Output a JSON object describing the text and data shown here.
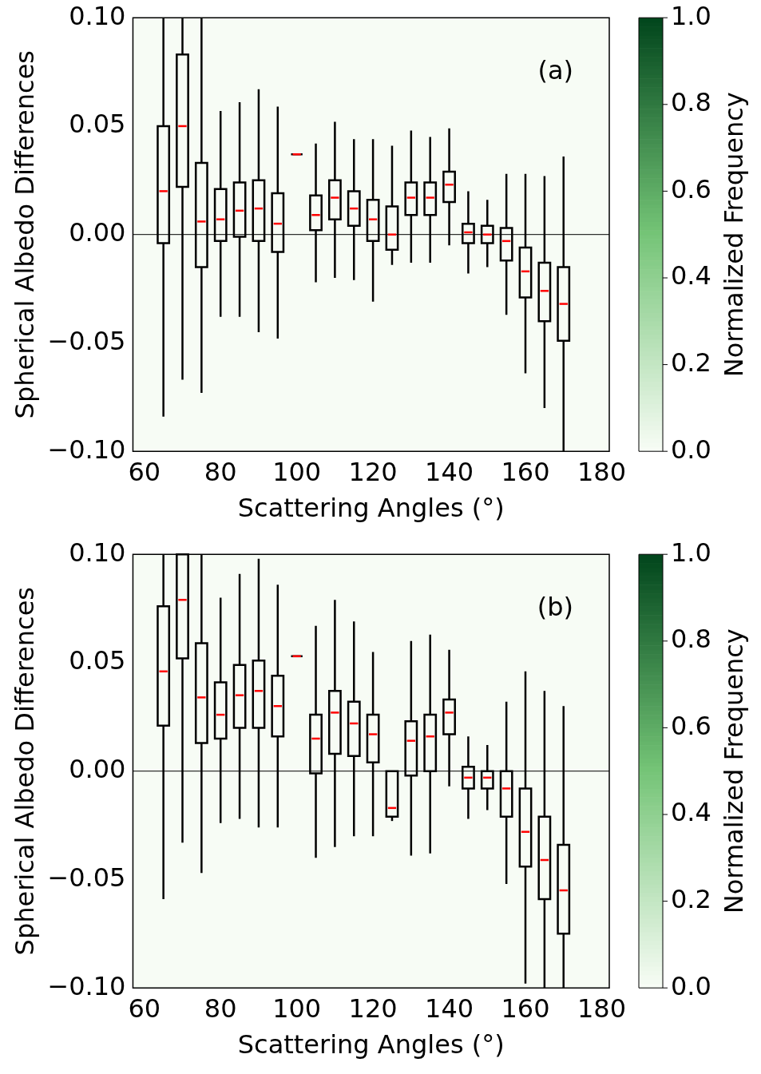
{
  "chart_data": [
    {
      "type": "box",
      "xlabel": "Scattering Angles (°)",
      "ylabel": "Spherical Albedo Differences",
      "clabel": "Normalized Frequency",
      "annotations": [
        "(a)"
      ],
      "x": [
        65,
        70,
        75,
        80,
        85,
        90,
        95,
        100,
        105,
        110,
        115,
        120,
        125,
        130,
        135,
        140,
        145,
        150,
        155,
        160,
        165,
        170
      ],
      "boxes": [
        {
          "low": -0.084,
          "q1": -0.004,
          "median": 0.02,
          "q3": 0.05,
          "high": 0.1
        },
        {
          "low": -0.067,
          "q1": 0.022,
          "median": 0.05,
          "q3": 0.083,
          "high": 0.1
        },
        {
          "low": -0.073,
          "q1": -0.015,
          "median": 0.006,
          "q3": 0.033,
          "high": 0.1
        },
        {
          "low": -0.038,
          "q1": -0.003,
          "median": 0.007,
          "q3": 0.021,
          "high": 0.057
        },
        {
          "low": -0.038,
          "q1": -0.001,
          "median": 0.011,
          "q3": 0.024,
          "high": 0.061
        },
        {
          "low": -0.045,
          "q1": -0.003,
          "median": 0.012,
          "q3": 0.025,
          "high": 0.067
        },
        {
          "low": -0.048,
          "q1": -0.008,
          "median": 0.005,
          "q3": 0.019,
          "high": 0.059
        },
        {
          "low": 0.037,
          "q1": 0.037,
          "median": 0.037,
          "q3": 0.037,
          "high": 0.037
        },
        {
          "low": -0.022,
          "q1": 0.002,
          "median": 0.009,
          "q3": 0.018,
          "high": 0.042
        },
        {
          "low": -0.02,
          "q1": 0.007,
          "median": 0.017,
          "q3": 0.025,
          "high": 0.052
        },
        {
          "low": -0.021,
          "q1": 0.004,
          "median": 0.012,
          "q3": 0.02,
          "high": 0.044
        },
        {
          "low": -0.031,
          "q1": -0.003,
          "median": 0.007,
          "q3": 0.016,
          "high": 0.044
        },
        {
          "low": -0.014,
          "q1": -0.007,
          "median": 0.0,
          "q3": 0.013,
          "high": 0.041
        },
        {
          "low": -0.013,
          "q1": 0.009,
          "median": 0.017,
          "q3": 0.024,
          "high": 0.048
        },
        {
          "low": -0.013,
          "q1": 0.009,
          "median": 0.017,
          "q3": 0.024,
          "high": 0.045
        },
        {
          "low": -0.005,
          "q1": 0.015,
          "median": 0.023,
          "q3": 0.029,
          "high": 0.049
        },
        {
          "low": -0.018,
          "q1": -0.004,
          "median": 0.001,
          "q3": 0.005,
          "high": 0.02
        },
        {
          "low": -0.015,
          "q1": -0.004,
          "median": 0.0,
          "q3": 0.004,
          "high": 0.016
        },
        {
          "low": -0.037,
          "q1": -0.012,
          "median": -0.003,
          "q3": 0.003,
          "high": 0.028
        },
        {
          "low": -0.064,
          "q1": -0.029,
          "median": -0.017,
          "q3": -0.006,
          "high": 0.028
        },
        {
          "low": -0.08,
          "q1": -0.04,
          "median": -0.026,
          "q3": -0.013,
          "high": 0.027
        },
        {
          "low": -0.1,
          "q1": -0.049,
          "median": -0.032,
          "q3": -0.015,
          "high": 0.036
        }
      ],
      "color": "#000000",
      "xlim": [
        57,
        182
      ],
      "xticks": [
        60,
        80,
        100,
        120,
        140,
        160,
        180
      ],
      "ylim": [
        -0.1,
        0.1
      ],
      "yticks": [
        {
          "value": -0.1,
          "label": "−0.10"
        },
        {
          "value": -0.05,
          "label": "−0.05"
        },
        {
          "value": 0,
          "label": "0.00"
        },
        {
          "value": 0.05,
          "label": "0.05"
        },
        {
          "value": 0.1,
          "label": "0.10"
        }
      ],
      "clim": [
        0,
        1
      ],
      "cticks": [
        {
          "value": 0,
          "label": "0.0"
        },
        {
          "value": 0.2,
          "label": "0.2"
        },
        {
          "value": 0.4,
          "label": "0.4"
        },
        {
          "value": 0.6,
          "label": "0.6"
        },
        {
          "value": 0.8,
          "label": "0.8"
        },
        {
          "value": 1,
          "label": "1.0"
        }
      ],
      "ref_lines": [
        {
          "axis": "y",
          "value": 0,
          "color": "#000000"
        }
      ]
    },
    {
      "type": "box",
      "xlabel": "Scattering Angles (°)",
      "ylabel": "Spherical Albedo Differences",
      "clabel": "Normalized Frequency",
      "annotations": [
        "(b)"
      ],
      "x": [
        65,
        70,
        75,
        80,
        85,
        90,
        95,
        100,
        105,
        110,
        115,
        120,
        125,
        130,
        135,
        140,
        145,
        150,
        155,
        160,
        165,
        170
      ],
      "boxes": [
        {
          "low": -0.059,
          "q1": 0.021,
          "median": 0.046,
          "q3": 0.076,
          "high": 0.1
        },
        {
          "low": -0.033,
          "q1": 0.052,
          "median": 0.079,
          "q3": 0.1,
          "high": 0.1
        },
        {
          "low": -0.047,
          "q1": 0.013,
          "median": 0.034,
          "q3": 0.059,
          "high": 0.1
        },
        {
          "low": -0.024,
          "q1": 0.015,
          "median": 0.026,
          "q3": 0.041,
          "high": 0.08
        },
        {
          "low": -0.022,
          "q1": 0.02,
          "median": 0.035,
          "q3": 0.049,
          "high": 0.091
        },
        {
          "low": -0.026,
          "q1": 0.02,
          "median": 0.037,
          "q3": 0.051,
          "high": 0.098
        },
        {
          "low": -0.026,
          "q1": 0.016,
          "median": 0.03,
          "q3": 0.044,
          "high": 0.086
        },
        {
          "low": 0.053,
          "q1": 0.053,
          "median": 0.053,
          "q3": 0.053,
          "high": 0.053
        },
        {
          "low": -0.04,
          "q1": -0.001,
          "median": 0.015,
          "q3": 0.026,
          "high": 0.067
        },
        {
          "low": -0.035,
          "q1": 0.008,
          "median": 0.027,
          "q3": 0.037,
          "high": 0.079
        },
        {
          "low": -0.03,
          "q1": 0.007,
          "median": 0.022,
          "q3": 0.032,
          "high": 0.069
        },
        {
          "low": -0.03,
          "q1": 0.004,
          "median": 0.017,
          "q3": 0.026,
          "high": 0.055
        },
        {
          "low": -0.023,
          "q1": -0.021,
          "median": -0.017,
          "q3": 0.0,
          "high": 0.0
        },
        {
          "low": -0.039,
          "q1": -0.002,
          "median": 0.014,
          "q3": 0.023,
          "high": 0.06
        },
        {
          "low": -0.038,
          "q1": 0.0,
          "median": 0.016,
          "q3": 0.026,
          "high": 0.063
        },
        {
          "low": -0.007,
          "q1": 0.017,
          "median": 0.027,
          "q3": 0.033,
          "high": 0.056
        },
        {
          "low": -0.022,
          "q1": -0.008,
          "median": -0.003,
          "q3": 0.002,
          "high": 0.016
        },
        {
          "low": -0.018,
          "q1": -0.008,
          "median": -0.003,
          "q3": 0.0,
          "high": 0.012
        },
        {
          "low": -0.052,
          "q1": -0.021,
          "median": -0.008,
          "q3": 0.0,
          "high": 0.032
        },
        {
          "low": -0.098,
          "q1": -0.044,
          "median": -0.028,
          "q3": -0.008,
          "high": 0.046
        },
        {
          "low": -0.1,
          "q1": -0.059,
          "median": -0.041,
          "q3": -0.021,
          "high": 0.037
        },
        {
          "low": -0.1,
          "q1": -0.075,
          "median": -0.055,
          "q3": -0.034,
          "high": 0.03
        }
      ],
      "color": "#000000",
      "xlim": [
        57,
        182
      ],
      "xticks": [
        60,
        80,
        100,
        120,
        140,
        160,
        180
      ],
      "ylim": [
        -0.1,
        0.1
      ],
      "yticks": [
        {
          "value": -0.1,
          "label": "−0.10"
        },
        {
          "value": -0.05,
          "label": "−0.05"
        },
        {
          "value": 0,
          "label": "0.00"
        },
        {
          "value": 0.05,
          "label": "0.05"
        },
        {
          "value": 0.1,
          "label": "0.10"
        }
      ],
      "clim": [
        0,
        1
      ],
      "cticks": [
        {
          "value": 0,
          "label": "0.0"
        },
        {
          "value": 0.2,
          "label": "0.2"
        },
        {
          "value": 0.4,
          "label": "0.4"
        },
        {
          "value": 0.6,
          "label": "0.6"
        },
        {
          "value": 0.8,
          "label": "0.8"
        },
        {
          "value": 1,
          "label": "1.0"
        }
      ],
      "ref_lines": [
        {
          "axis": "y",
          "value": 0,
          "color": "#000000"
        }
      ]
    }
  ]
}
